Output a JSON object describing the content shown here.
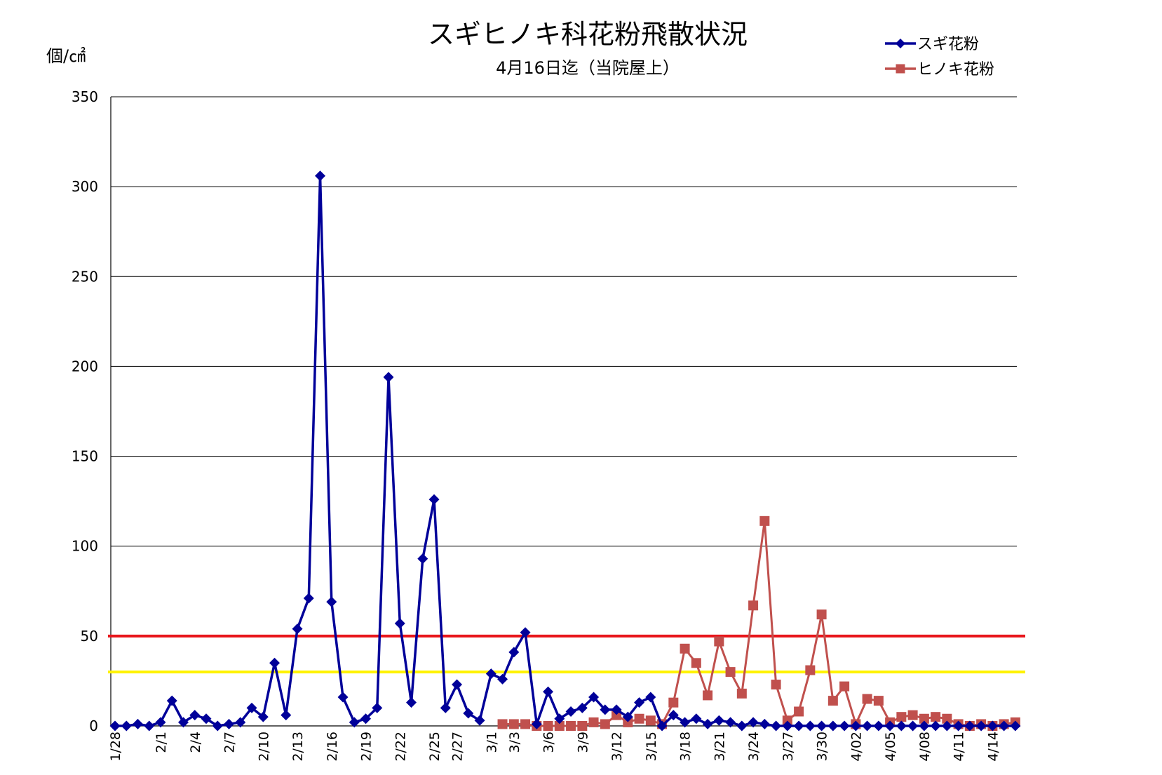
{
  "chart_data": {
    "type": "line",
    "title": "スギヒノキ科花粉飛散状況",
    "subtitle": "4月16日迄（当院屋上）",
    "ylabel": "個/㎠",
    "xlabel": "",
    "ylim": [
      0,
      350
    ],
    "yticks": [
      0,
      50,
      100,
      150,
      200,
      250,
      300,
      350
    ],
    "grid": true,
    "legend_position": "top-right",
    "categories": [
      "1/28",
      "1/29",
      "1/30",
      "1/31",
      "2/1",
      "2/2",
      "2/3",
      "2/4",
      "2/5",
      "2/6",
      "2/7",
      "2/8",
      "2/9",
      "2/10",
      "2/11",
      "2/12",
      "2/13",
      "2/14",
      "2/15",
      "2/16",
      "2/17",
      "2/18",
      "2/19",
      "2/20",
      "2/21",
      "2/22",
      "2/23",
      "2/24",
      "2/25",
      "2/26",
      "2/27",
      "2/28",
      "2/29",
      "3/1",
      "3/2",
      "3/3",
      "3/4",
      "3/5",
      "3/6",
      "3/7",
      "3/8",
      "3/9",
      "3/10",
      "3/11",
      "3/12",
      "3/13",
      "3/14",
      "3/15",
      "3/16",
      "3/17",
      "3/18",
      "3/19",
      "3/20",
      "3/21",
      "3/22",
      "3/23",
      "3/24",
      "3/25",
      "3/26",
      "3/27",
      "3/28",
      "3/29",
      "3/30",
      "3/31",
      "4/01",
      "4/02",
      "4/03",
      "4/04",
      "4/05",
      "4/06",
      "4/07",
      "4/08",
      "4/09",
      "4/10",
      "4/11",
      "4/12",
      "4/13",
      "4/14",
      "4/15",
      "4/16"
    ],
    "tick_labels": [
      "1/28",
      "2/1",
      "2/4",
      "2/7",
      "2/10",
      "2/13",
      "2/16",
      "2/19",
      "2/22",
      "2/25",
      "2/27",
      "3/1",
      "3/3",
      "3/6",
      "3/9",
      "3/12",
      "3/15",
      "3/18",
      "3/21",
      "3/24",
      "3/27",
      "3/30",
      "4/02",
      "4/05",
      "4/08",
      "4/11",
      "4/14"
    ],
    "series": [
      {
        "name": "スギ花粉",
        "color": "#000099",
        "marker": "diamond",
        "values": [
          0,
          0,
          1,
          0,
          2,
          14,
          2,
          6,
          4,
          0,
          1,
          2,
          10,
          5,
          35,
          6,
          54,
          71,
          306,
          69,
          16,
          2,
          4,
          10,
          194,
          57,
          13,
          93,
          126,
          10,
          23,
          7,
          3,
          29,
          26,
          41,
          52,
          1,
          19,
          4,
          8,
          10,
          16,
          9,
          9,
          5,
          13,
          16,
          0,
          6,
          2,
          4,
          1,
          3,
          2,
          0,
          2,
          1,
          0,
          0,
          0,
          0,
          0,
          0,
          0,
          0,
          0,
          0,
          0,
          0,
          0,
          0,
          0,
          0,
          0,
          0,
          0,
          0,
          0,
          0
        ]
      },
      {
        "name": "ヒノキ花粉",
        "color": "#C0504D",
        "marker": "square",
        "values": [
          null,
          null,
          null,
          null,
          null,
          null,
          null,
          null,
          null,
          null,
          null,
          null,
          null,
          null,
          null,
          null,
          null,
          null,
          null,
          null,
          null,
          null,
          null,
          null,
          null,
          null,
          null,
          null,
          null,
          null,
          null,
          null,
          null,
          null,
          1,
          1,
          1,
          0,
          0,
          0,
          0,
          0,
          2,
          1,
          6,
          2,
          4,
          3,
          1,
          13,
          43,
          35,
          17,
          47,
          30,
          18,
          67,
          114,
          23,
          3,
          8,
          31,
          62,
          14,
          22,
          1,
          15,
          14,
          2,
          5,
          6,
          4,
          5,
          4,
          1,
          0,
          1,
          0,
          1,
          2
        ]
      }
    ],
    "reference_lines": [
      {
        "value": 50,
        "color": "#E8161B"
      },
      {
        "value": 30,
        "color": "#FFF200"
      }
    ]
  }
}
